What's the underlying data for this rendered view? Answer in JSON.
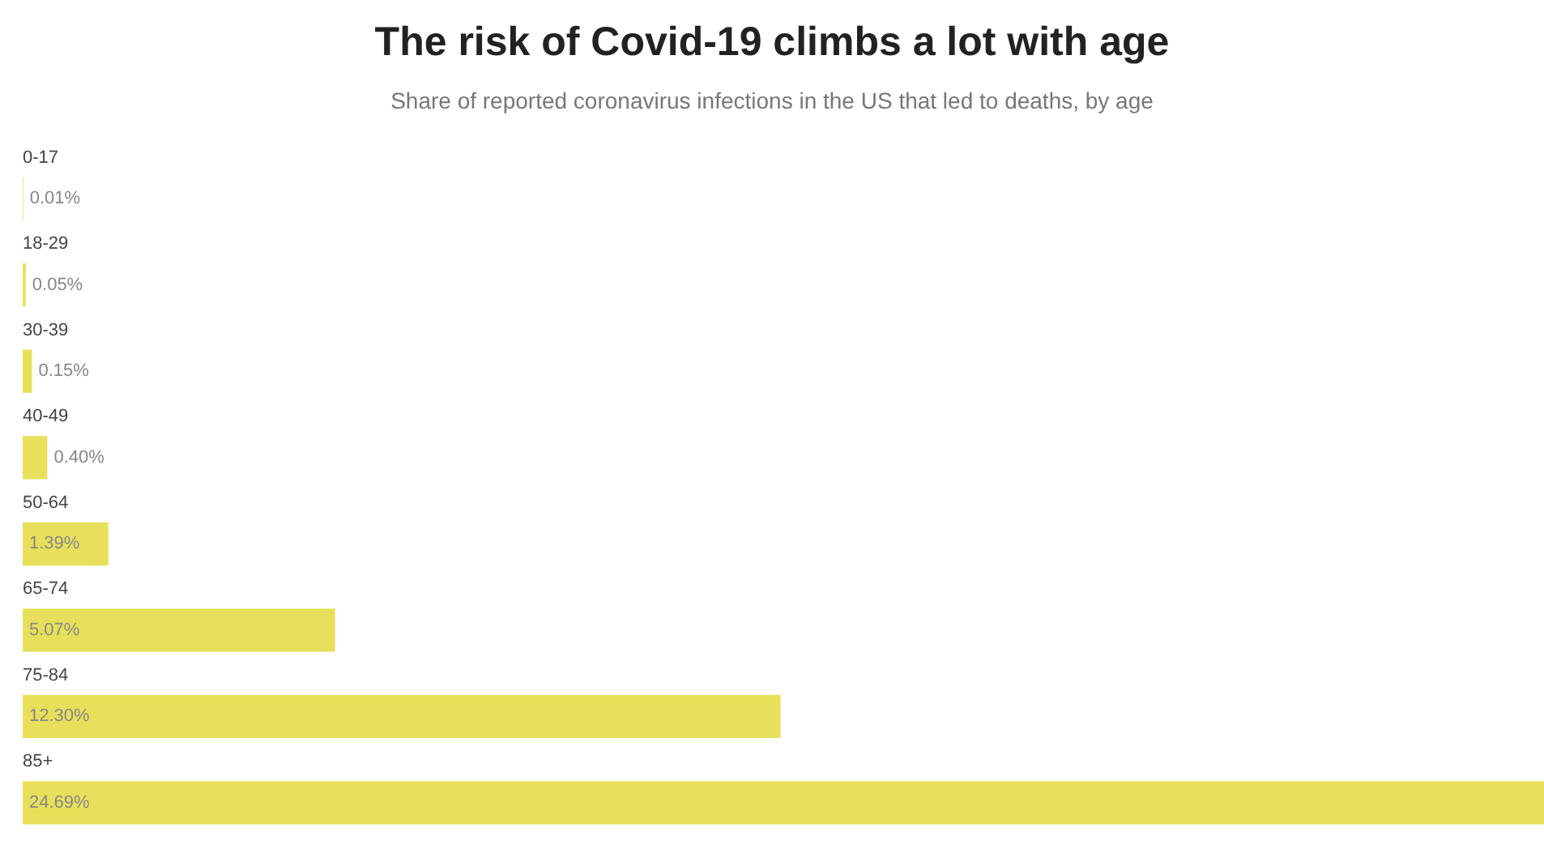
{
  "chart_data": {
    "type": "bar",
    "orientation": "horizontal",
    "title": "The risk of Covid-19 climbs a lot with age",
    "subtitle": "Share of reported coronavirus infections in the US that led to deaths, by age",
    "categories": [
      "0-17",
      "18-29",
      "30-39",
      "40-49",
      "50-64",
      "65-74",
      "75-84",
      "85+"
    ],
    "values": [
      0.01,
      0.05,
      0.15,
      0.4,
      1.39,
      5.07,
      12.3,
      24.69
    ],
    "value_labels": [
      "0.01%",
      "0.05%",
      "0.15%",
      "0.40%",
      "1.39%",
      "5.07%",
      "12.30%",
      "24.69%"
    ],
    "color": "#e8e05a",
    "legend": false
  }
}
